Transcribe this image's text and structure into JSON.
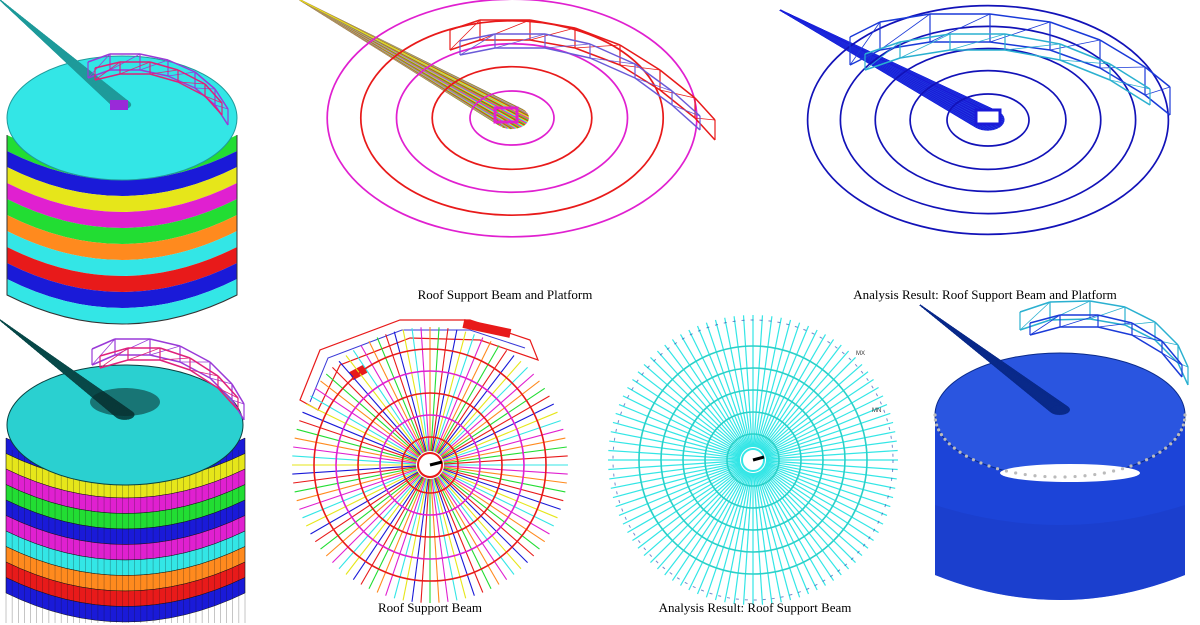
{
  "captions": {
    "roof_beam_platform": "Roof Support Beam and Platform",
    "analysis_beam_platform": "Analysis Result: Roof Support Beam and Platform",
    "roof_beam": "Roof Support Beam",
    "analysis_beam": "Analysis Result: Roof Support Beam"
  },
  "tiny_labels": {
    "max": "MX",
    "min": "MN"
  },
  "colors": {
    "cyan": "#33e6e6",
    "magenta": "#e020d0",
    "orange": "#ff8a1e",
    "green": "#22dd33",
    "red": "#e81a1a",
    "blue": "#1a1ad8",
    "yellow": "#e6e61a",
    "royal": "#1c44d8"
  }
}
